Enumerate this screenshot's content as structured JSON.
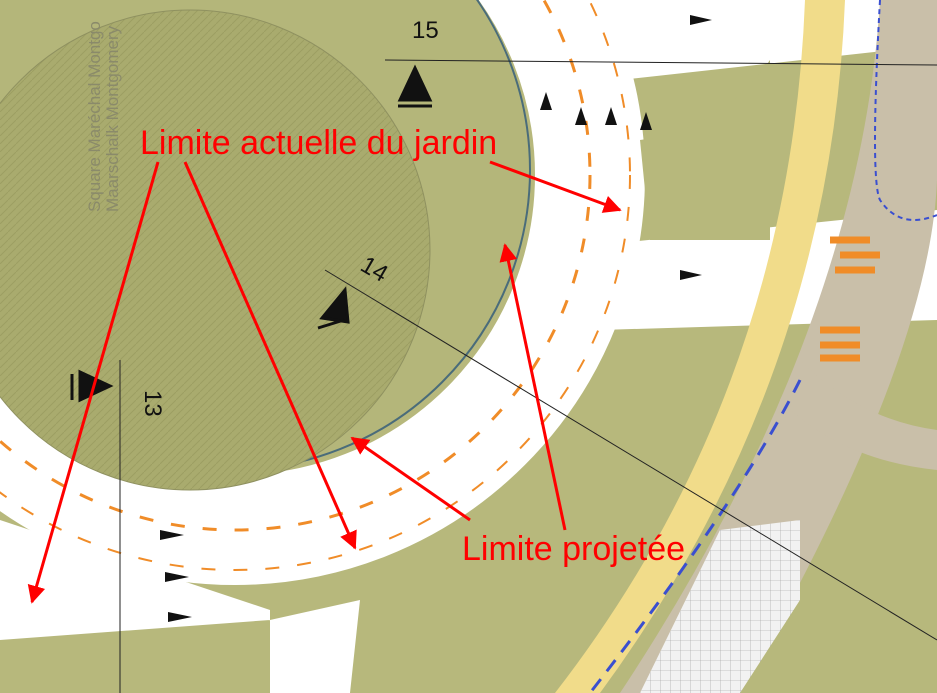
{
  "labels": {
    "street_fr": "Square Maréchal Montgo",
    "street_nl": "Maarschalk Montgomery"
  },
  "sections": [
    "15",
    "14",
    "13"
  ],
  "annotations": {
    "current_limit": "Limite actuelle du jardin",
    "projected_limit": "Limite projetée"
  }
}
